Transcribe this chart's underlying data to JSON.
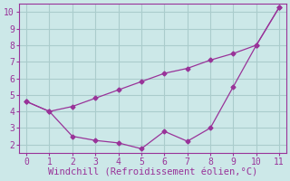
{
  "line1_x": [
    0,
    1,
    2,
    3,
    4,
    5,
    6,
    7,
    8,
    9,
    10,
    11
  ],
  "line1_y": [
    4.6,
    4.0,
    4.3,
    4.8,
    5.3,
    5.8,
    6.3,
    6.6,
    7.1,
    7.5,
    8.0,
    10.3
  ],
  "line2_x": [
    0,
    1,
    2,
    3,
    4,
    5,
    6,
    7,
    8,
    9,
    10,
    11
  ],
  "line2_y": [
    4.6,
    4.0,
    2.5,
    2.25,
    2.1,
    1.75,
    2.8,
    2.2,
    3.0,
    5.5,
    8.0,
    10.3
  ],
  "line_color": "#993399",
  "bg_color": "#cce8e8",
  "grid_color": "#aacccc",
  "xlabel": "Windchill (Refroidissement éolien,°C)",
  "xlabel_color": "#993399",
  "xlabel_fontsize": 7.5,
  "tick_color": "#993399",
  "tick_fontsize": 7,
  "xlim": [
    0,
    11
  ],
  "ylim": [
    1.5,
    10.5
  ],
  "xticks": [
    0,
    1,
    2,
    3,
    4,
    5,
    6,
    7,
    8,
    9,
    10,
    11
  ],
  "yticks": [
    2,
    3,
    4,
    5,
    6,
    7,
    8,
    9,
    10
  ]
}
